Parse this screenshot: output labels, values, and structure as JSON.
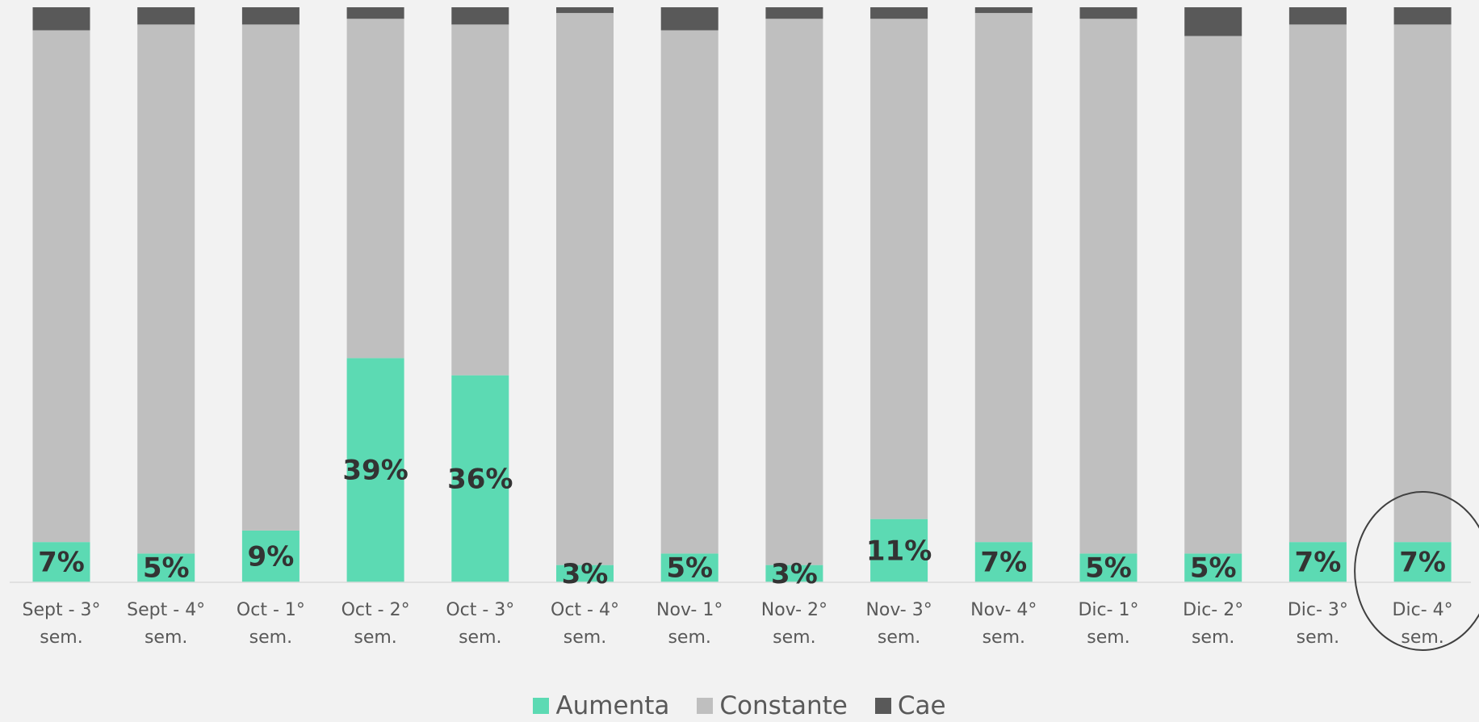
{
  "chart_data": {
    "type": "stacked_bar",
    "categories": [
      "Sept - 3°\nsem.",
      "Sept - 4°\nsem.",
      "Oct - 1°\nsem.",
      "Oct - 2°\nsem.",
      "Oct - 3°\nsem.",
      "Oct - 4°\nsem.",
      "Nov- 1°\nsem.",
      "Nov- 2°\nsem.",
      "Nov- 3°\nsem.",
      "Nov- 4°\nsem.",
      "Dic- 1°\nsem.",
      "Dic- 2°\nsem.",
      "Dic- 3°\nsem.",
      "Dic- 4°\nsem."
    ],
    "series": [
      {
        "name": "Aumenta",
        "color": "#5cdab3",
        "values": [
          7,
          5,
          9,
          39,
          36,
          3,
          5,
          3,
          11,
          7,
          5,
          5,
          7,
          7
        ],
        "value_labels": [
          "7%",
          "5%",
          "9%",
          "39%",
          "36%",
          "3%",
          "5%",
          "3%",
          "11%",
          "7%",
          "5%",
          "5%",
          "7%",
          "7%"
        ]
      },
      {
        "name": "Constante",
        "color": "#bfbfbf",
        "values": [
          89,
          92,
          88,
          59,
          61,
          96,
          91,
          95,
          87,
          92,
          93,
          90,
          90,
          90
        ]
      },
      {
        "name": "Cae",
        "color": "#595959",
        "values": [
          4,
          3,
          3,
          2,
          3,
          1,
          4,
          2,
          2,
          1,
          2,
          5,
          3,
          3
        ]
      }
    ],
    "ylim": [
      0,
      100
    ],
    "legend": "bottom"
  }
}
